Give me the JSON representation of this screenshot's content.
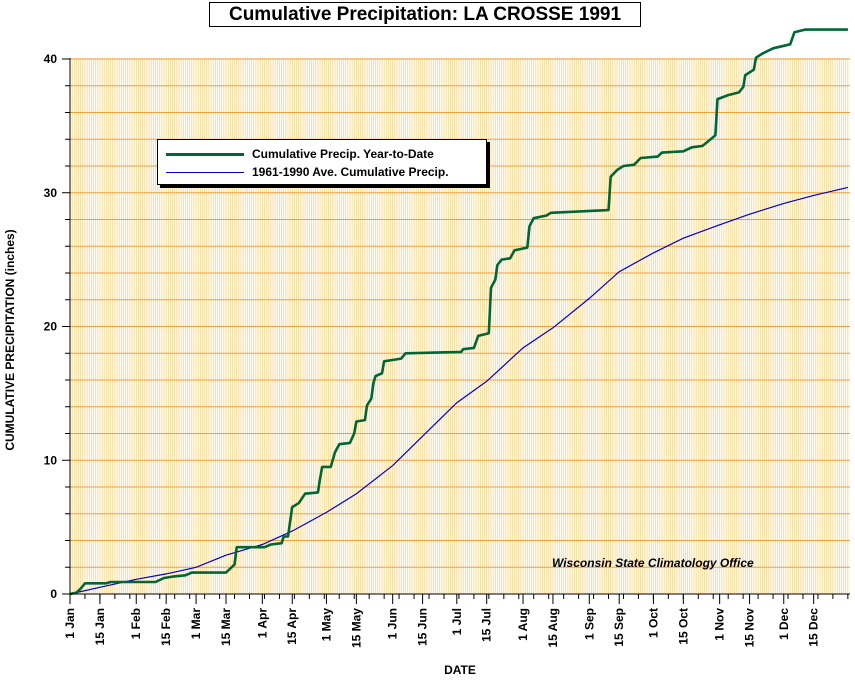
{
  "chart_data": {
    "type": "line",
    "title": "Cumulative Precipitation: LA CROSSE 1991",
    "xlabel": "DATE",
    "ylabel": "CUMULATIVE PRECIPITATION (inches)",
    "xlim": [
      "1 Jan",
      "31 Dec"
    ],
    "ylim": [
      0,
      42
    ],
    "yticks": [
      0,
      10,
      20,
      30,
      40
    ],
    "xtick_labels": [
      "1 Jan",
      "15 Jan",
      "1 Feb",
      "15 Feb",
      "1 Mar",
      "15 Mar",
      "1 Apr",
      "15 Apr",
      "1 May",
      "15 May",
      "1 Jun",
      "15 Jun",
      "1 Jul",
      "15 Jul",
      "1 Aug",
      "15 Aug",
      "1 Sep",
      "15 Sep",
      "1 Oct",
      "15 Oct",
      "1 Nov",
      "15 Nov",
      "1 Dec",
      "15 Dec"
    ],
    "grid": true,
    "legend_position": "upper-left",
    "annotation": "Wisconsin State Climatology Office",
    "series": [
      {
        "name": "Cumulative Precip. Year-to-Date",
        "color": "#006633",
        "points": [
          [
            "Jan 1",
            0
          ],
          [
            "Jan 4",
            0.1
          ],
          [
            "Jan 6",
            0.4
          ],
          [
            "Jan 8",
            0.8
          ],
          [
            "Jan 18",
            0.8
          ],
          [
            "Jan 20",
            0.9
          ],
          [
            "Feb 10",
            0.9
          ],
          [
            "Feb 14",
            1.2
          ],
          [
            "Feb 18",
            1.3
          ],
          [
            "Feb 24",
            1.4
          ],
          [
            "Feb 27",
            1.6
          ],
          [
            "Mar 15",
            1.6
          ],
          [
            "Mar 17",
            1.9
          ],
          [
            "Mar 19",
            2.2
          ],
          [
            "Mar 20",
            3.5
          ],
          [
            "Apr 2",
            3.5
          ],
          [
            "Apr 5",
            3.7
          ],
          [
            "Apr 10",
            3.8
          ],
          [
            "Apr 11",
            4.3
          ],
          [
            "Apr 13",
            4.3
          ],
          [
            "Apr 14",
            5.4
          ],
          [
            "Apr 15",
            6.5
          ],
          [
            "Apr 18",
            6.8
          ],
          [
            "Apr 21",
            7.5
          ],
          [
            "Apr 27",
            7.6
          ],
          [
            "Apr 28",
            8.6
          ],
          [
            "Apr 29",
            9.5
          ],
          [
            "May 3",
            9.5
          ],
          [
            "May 5",
            10.6
          ],
          [
            "May 7",
            11.2
          ],
          [
            "May 12",
            11.3
          ],
          [
            "May 14",
            12.0
          ],
          [
            "May 15",
            12.9
          ],
          [
            "May 19",
            13.0
          ],
          [
            "May 20",
            14.1
          ],
          [
            "May 22",
            14.6
          ],
          [
            "May 23",
            15.8
          ],
          [
            "May 24",
            16.3
          ],
          [
            "May 27",
            16.5
          ],
          [
            "May 28",
            17.4
          ],
          [
            "Jun 5",
            17.6
          ],
          [
            "Jun 7",
            18.0
          ],
          [
            "Jul 3",
            18.1
          ],
          [
            "Jul 4",
            18.3
          ],
          [
            "Jul 9",
            18.4
          ],
          [
            "Jul 11",
            19.3
          ],
          [
            "Jul 16",
            19.5
          ],
          [
            "Jul 17",
            22.9
          ],
          [
            "Jul 19",
            23.5
          ],
          [
            "Jul 20",
            24.6
          ],
          [
            "Jul 22",
            25.0
          ],
          [
            "Jul 26",
            25.1
          ],
          [
            "Jul 28",
            25.7
          ],
          [
            "Aug 3",
            25.9
          ],
          [
            "Aug 4",
            27.5
          ],
          [
            "Aug 6",
            28.1
          ],
          [
            "Aug 12",
            28.3
          ],
          [
            "Aug 14",
            28.5
          ],
          [
            "Sep 10",
            28.7
          ],
          [
            "Sep 11",
            31.2
          ],
          [
            "Sep 14",
            31.7
          ],
          [
            "Sep 17",
            32.0
          ],
          [
            "Sep 22",
            32.1
          ],
          [
            "Sep 25",
            32.6
          ],
          [
            "Oct 3",
            32.7
          ],
          [
            "Oct 5",
            33.0
          ],
          [
            "Oct 15",
            33.1
          ],
          [
            "Oct 19",
            33.4
          ],
          [
            "Oct 24",
            33.5
          ],
          [
            "Oct 27",
            33.9
          ],
          [
            "Oct 30",
            34.3
          ],
          [
            "Oct 31",
            37.0
          ],
          [
            "Nov 5",
            37.3
          ],
          [
            "Nov 10",
            37.5
          ],
          [
            "Nov 12",
            37.9
          ],
          [
            "Nov 13",
            38.8
          ],
          [
            "Nov 17",
            39.2
          ],
          [
            "Nov 18",
            40.1
          ],
          [
            "Nov 21",
            40.4
          ],
          [
            "Nov 26",
            40.8
          ],
          [
            "Dec 4",
            41.1
          ],
          [
            "Dec 6",
            42.0
          ],
          [
            "Dec 11",
            42.2
          ],
          [
            "Dec 31",
            42.2
          ]
        ]
      },
      {
        "name": "1961-1990 Ave. Cumulative Precip.",
        "color": "#0000cc",
        "points": [
          [
            "Jan 1",
            0
          ],
          [
            "Jan 15",
            0.5
          ],
          [
            "Feb 1",
            1.1
          ],
          [
            "Feb 15",
            1.5
          ],
          [
            "Mar 1",
            2.0
          ],
          [
            "Mar 15",
            2.9
          ],
          [
            "Apr 1",
            3.7
          ],
          [
            "Apr 15",
            4.7
          ],
          [
            "May 1",
            6.1
          ],
          [
            "May 15",
            7.5
          ],
          [
            "Jun 1",
            9.6
          ],
          [
            "Jun 15",
            11.8
          ],
          [
            "Jul 1",
            14.3
          ],
          [
            "Jul 15",
            15.9
          ],
          [
            "Aug 1",
            18.4
          ],
          [
            "Aug 15",
            19.9
          ],
          [
            "Sep 1",
            22.1
          ],
          [
            "Sep 15",
            24.1
          ],
          [
            "Oct 1",
            25.5
          ],
          [
            "Oct 15",
            26.6
          ],
          [
            "Nov 1",
            27.6
          ],
          [
            "Nov 15",
            28.4
          ],
          [
            "Dec 1",
            29.2
          ],
          [
            "Dec 15",
            29.8
          ],
          [
            "Dec 31",
            30.4
          ]
        ]
      }
    ]
  }
}
